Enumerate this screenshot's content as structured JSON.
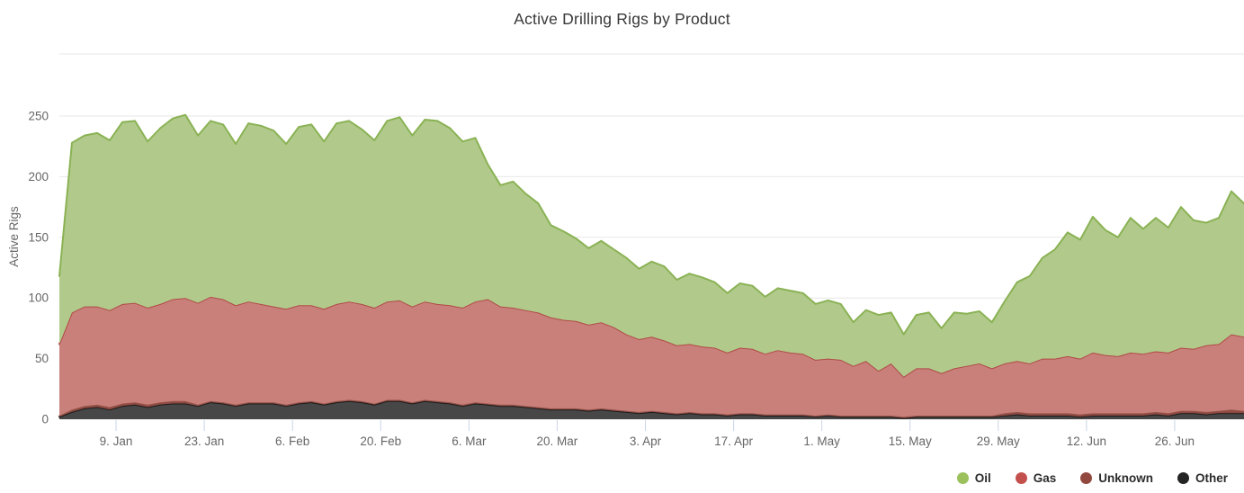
{
  "chart_data": {
    "type": "area",
    "stacked": true,
    "title": "Active Drilling Rigs by Product",
    "xlabel": "",
    "ylabel": "Active Rigs",
    "ylim": [
      0,
      250
    ],
    "yticks": [
      0,
      50,
      100,
      150,
      200,
      250
    ],
    "grid": true,
    "legend_position": "bottom-right",
    "x_start_day": 0,
    "x_step_days": 2,
    "x_days_total": 188,
    "x_tick_labels": [
      {
        "day": 9,
        "label": "9. Jan"
      },
      {
        "day": 23,
        "label": "23. Jan"
      },
      {
        "day": 37,
        "label": "6. Feb"
      },
      {
        "day": 51,
        "label": "20. Feb"
      },
      {
        "day": 65,
        "label": "6. Mar"
      },
      {
        "day": 79,
        "label": "20. Mar"
      },
      {
        "day": 93,
        "label": "3. Apr"
      },
      {
        "day": 107,
        "label": "17. Apr"
      },
      {
        "day": 121,
        "label": "1. May"
      },
      {
        "day": 135,
        "label": "15. May"
      },
      {
        "day": 149,
        "label": "29. May"
      },
      {
        "day": 163,
        "label": "12. Jun"
      },
      {
        "day": 177,
        "label": "26. Jun"
      }
    ],
    "legend_order": [
      "Oil",
      "Gas",
      "Unknown",
      "Other"
    ],
    "series": [
      {
        "name": "Other",
        "fill": "#474747",
        "line": "#1b1b1b",
        "line_width": 2,
        "legend_color": "#242424",
        "values": [
          2,
          6,
          9,
          10,
          8,
          11,
          12,
          10,
          12,
          13,
          13,
          11,
          14,
          13,
          11,
          13,
          13,
          13,
          11,
          13,
          14,
          12,
          14,
          15,
          14,
          12,
          15,
          15,
          13,
          15,
          14,
          13,
          11,
          13,
          12,
          11,
          11,
          10,
          9,
          8,
          8,
          8,
          7,
          8,
          7,
          6,
          5,
          6,
          5,
          4,
          5,
          4,
          4,
          3,
          4,
          4,
          3,
          3,
          3,
          3,
          2,
          3,
          2,
          2,
          2,
          2,
          2,
          1,
          2,
          2,
          2,
          2,
          2,
          2,
          2,
          3,
          4,
          3,
          3,
          3,
          3,
          2,
          3,
          3,
          3,
          3,
          3,
          4,
          3,
          5,
          5,
          4,
          5,
          5,
          5
        ]
      },
      {
        "name": "Unknown",
        "fill": "#8f4a41",
        "line": "#9c5a50",
        "line_width": 1.5,
        "legend_color": "#93483f",
        "values": [
          1,
          2,
          2,
          2,
          2,
          2,
          2,
          2,
          2,
          2,
          2,
          1,
          1,
          1,
          1,
          1,
          1,
          1,
          1,
          1,
          1,
          1,
          1,
          1,
          1,
          1,
          1,
          1,
          1,
          1,
          1,
          1,
          1,
          1,
          1,
          1,
          1,
          1,
          1,
          1,
          1,
          1,
          1,
          1,
          1,
          1,
          1,
          1,
          1,
          1,
          1,
          1,
          1,
          1,
          1,
          1,
          1,
          1,
          1,
          1,
          1,
          1,
          1,
          1,
          1,
          1,
          1,
          1,
          1,
          1,
          1,
          1,
          1,
          1,
          1,
          2,
          2,
          2,
          2,
          2,
          2,
          2,
          2,
          2,
          2,
          2,
          2,
          2,
          2,
          2,
          2,
          2,
          2,
          3,
          2
        ]
      },
      {
        "name": "Gas",
        "fill": "#c9807b",
        "line": "#b04a45",
        "line_width": 2,
        "legend_color": "#c4504d",
        "values": [
          59,
          80,
          82,
          81,
          80,
          82,
          82,
          80,
          81,
          84,
          85,
          84,
          86,
          85,
          82,
          83,
          81,
          79,
          79,
          80,
          79,
          78,
          80,
          81,
          80,
          79,
          81,
          82,
          79,
          81,
          80,
          80,
          80,
          83,
          86,
          81,
          80,
          79,
          78,
          75,
          73,
          72,
          70,
          71,
          68,
          63,
          60,
          61,
          59,
          56,
          56,
          55,
          54,
          51,
          54,
          53,
          50,
          53,
          51,
          50,
          46,
          46,
          46,
          41,
          45,
          37,
          43,
          33,
          39,
          39,
          35,
          39,
          41,
          43,
          39,
          41,
          42,
          41,
          45,
          45,
          47,
          46,
          50,
          48,
          47,
          50,
          49,
          50,
          50,
          52,
          51,
          55,
          55,
          62,
          61
        ]
      },
      {
        "name": "Oil",
        "fill": "#b1ca8c",
        "line": "#8ab254",
        "line_width": 2,
        "legend_color": "#9bc05c",
        "values": [
          56,
          140,
          141,
          143,
          140,
          150,
          150,
          137,
          145,
          149,
          151,
          138,
          145,
          144,
          133,
          147,
          147,
          145,
          136,
          147,
          149,
          138,
          149,
          149,
          144,
          138,
          149,
          151,
          141,
          150,
          151,
          146,
          137,
          135,
          111,
          100,
          104,
          96,
          90,
          76,
          73,
          68,
          63,
          67,
          64,
          63,
          58,
          62,
          61,
          54,
          58,
          57,
          54,
          49,
          53,
          52,
          47,
          51,
          51,
          50,
          46,
          48,
          46,
          36,
          42,
          46,
          42,
          35,
          44,
          46,
          37,
          46,
          43,
          43,
          38,
          51,
          65,
          72,
          83,
          90,
          102,
          98,
          112,
          103,
          98,
          111,
          103,
          110,
          103,
          116,
          106,
          101,
          104,
          118,
          110
        ]
      }
    ],
    "style": {
      "grid_color": "#e7e7e7",
      "tick_color": "#c9d5e6",
      "axis_label_color": "#666666",
      "title_color": "#373737"
    }
  }
}
